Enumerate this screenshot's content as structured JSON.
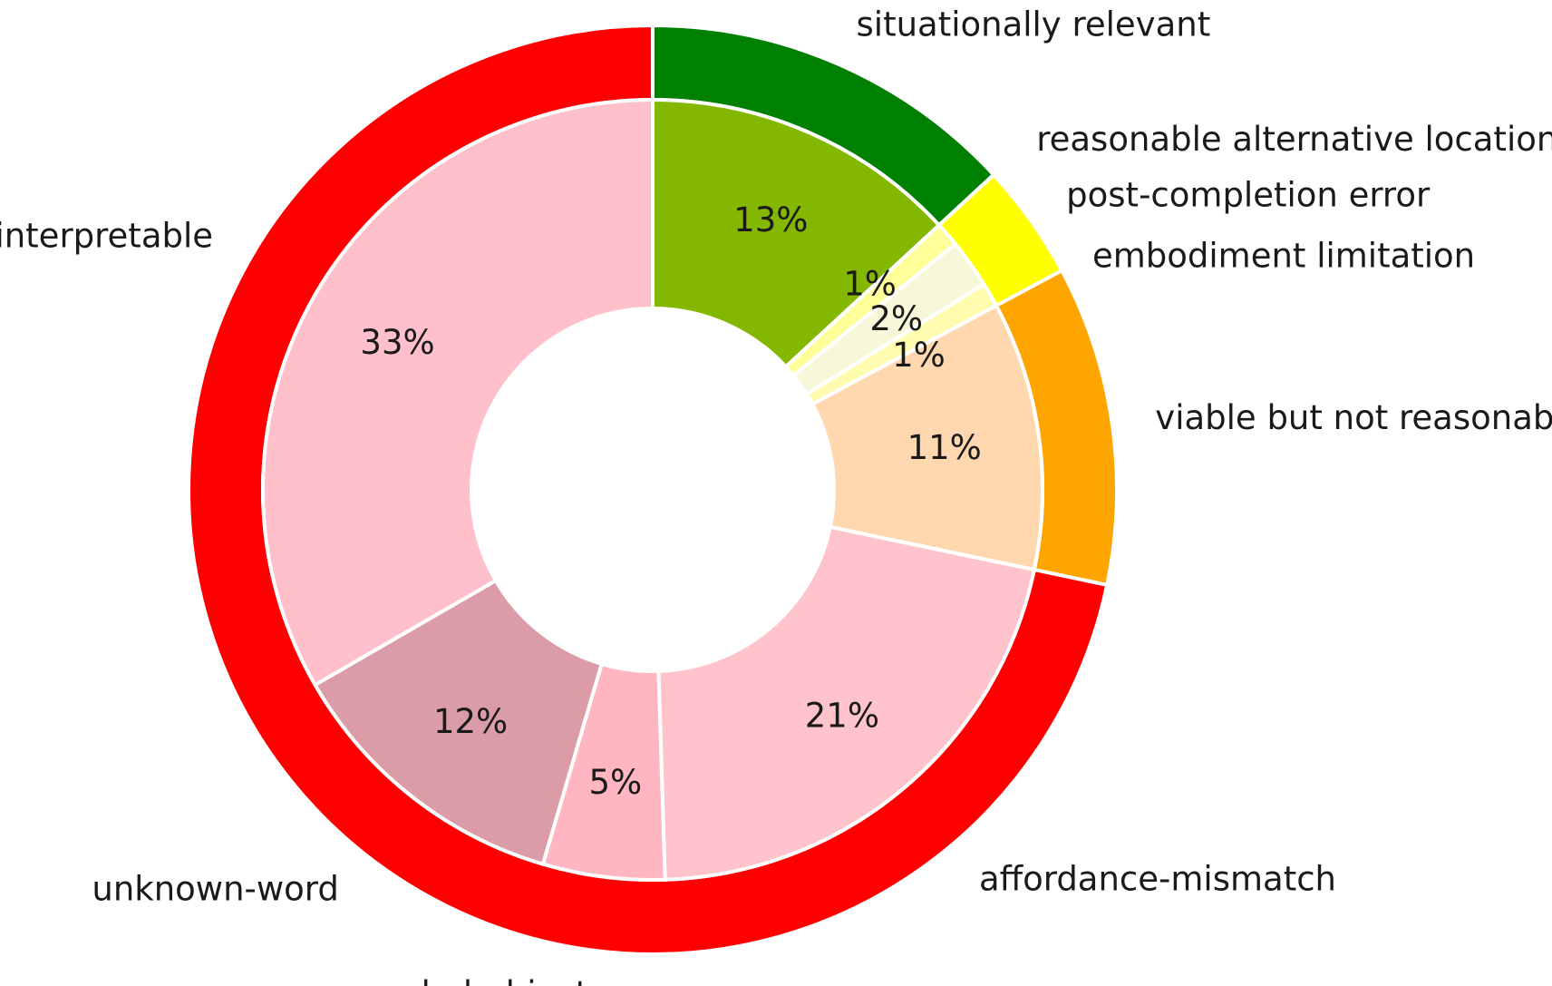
{
  "chart_data": {
    "type": "pie",
    "style": "nested-donut",
    "inner_ring": {
      "categories": [
        "situationally relevant",
        "reasonable alternative location",
        "post-completion error",
        "embodiment limitation",
        "viable but not reasonable",
        "affordance-mismatch",
        "ungrounded-object",
        "unknown-word",
        "uninterpretable"
      ],
      "values": [
        13,
        1,
        2,
        1,
        11,
        21,
        5,
        12,
        33
      ],
      "value_labels": [
        "13%",
        "1%",
        "2%",
        "1%",
        "11%",
        "21%",
        "5%",
        "12%",
        "33%"
      ],
      "colors": [
        "#84b800",
        "#ffff99",
        "#f7f7d9",
        "#fffcb0",
        "#ffd8b0",
        "#ffc4cb",
        "#ffb6c1",
        "#db9ca8",
        "#ffbfcb"
      ]
    },
    "outer_ring": {
      "values": [
        13,
        4,
        11,
        71
      ],
      "colors": [
        "#008000",
        "#ffff00",
        "#ffa500",
        "#ff0000"
      ]
    },
    "category_labels": {
      "situationally relevant": "situationally relevant",
      "reasonable alternative location": "reasonable alternative location",
      "post-completion error": "post-completion error",
      "embodiment limitation": "embodiment limitation",
      "viable but not reasonable": "viable but not reasonable",
      "affordance-mismatch": "affordance-mismatch",
      "ungrounded-object": "ungrounded-object",
      "unknown-word": "unknown-word",
      "uninterpretable": "uninterpretable"
    },
    "title": "",
    "legend": "none",
    "direction": "clockwise",
    "start": "top"
  }
}
